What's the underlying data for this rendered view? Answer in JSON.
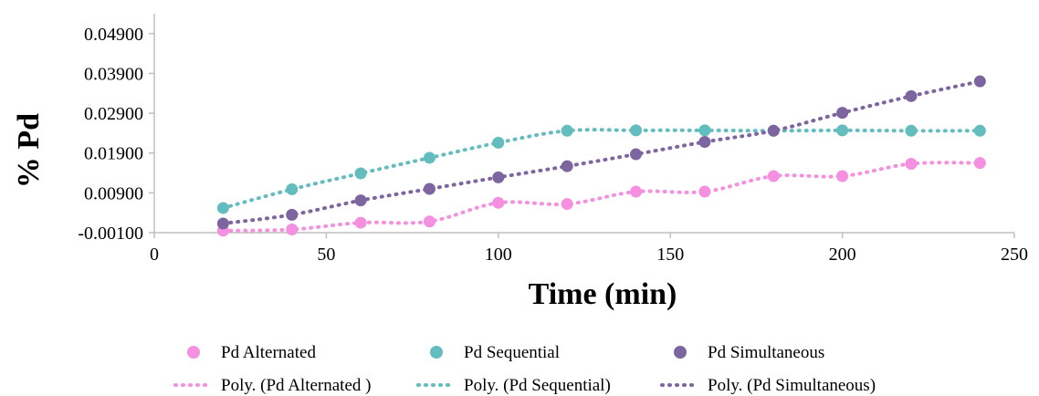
{
  "chart_data": {
    "type": "scatter",
    "xlabel": "Time (min)",
    "ylabel": "% Pd",
    "xlim": [
      0,
      250
    ],
    "ylim": [
      -0.001,
      0.054
    ],
    "x_ticks": [
      0,
      50,
      100,
      150,
      200,
      250
    ],
    "x_tick_labels": [
      "0",
      "50",
      "100",
      "150",
      "200",
      "250"
    ],
    "y_ticks": [
      -0.001,
      0.009,
      0.019,
      0.029,
      0.039,
      0.049
    ],
    "y_tick_labels": [
      "-0.00100",
      "0.00900",
      "0.01900",
      "0.02900",
      "0.03900",
      "0.04900"
    ],
    "grid": false,
    "legend_position": "bottom",
    "x": [
      20,
      40,
      60,
      80,
      100,
      120,
      140,
      160,
      180,
      200,
      220,
      240
    ],
    "series": [
      {
        "name": "Pd Alternated",
        "color": "#F58FE0",
        "values": [
          -0.0005,
          -0.0002,
          0.0015,
          0.0018,
          0.0065,
          0.0062,
          0.0093,
          0.0093,
          0.0132,
          0.0132,
          0.0163,
          0.0165
        ]
      },
      {
        "name": "Pd Sequential",
        "color": "#63BDBE",
        "values": [
          0.0052,
          0.0099,
          0.0139,
          0.0178,
          0.0216,
          0.0246,
          0.0247,
          0.0247,
          0.0246,
          0.0247,
          0.0246,
          0.0246
        ]
      },
      {
        "name": "Pd Simultaneous",
        "color": "#7D65A0",
        "values": [
          0.0013,
          0.0035,
          0.0071,
          0.01,
          0.0129,
          0.0157,
          0.0187,
          0.0218,
          0.0246,
          0.0291,
          0.0333,
          0.037
        ]
      }
    ],
    "trendlines": [
      {
        "name": "Poly. (Pd Alternated )",
        "color": "#F58FE0",
        "series_index": 0
      },
      {
        "name": "Poly. (Pd Sequential)",
        "color": "#63BDBE",
        "series_index": 1
      },
      {
        "name": "Poly. (Pd Simultaneous)",
        "color": "#7D65A0",
        "series_index": 2
      }
    ]
  }
}
